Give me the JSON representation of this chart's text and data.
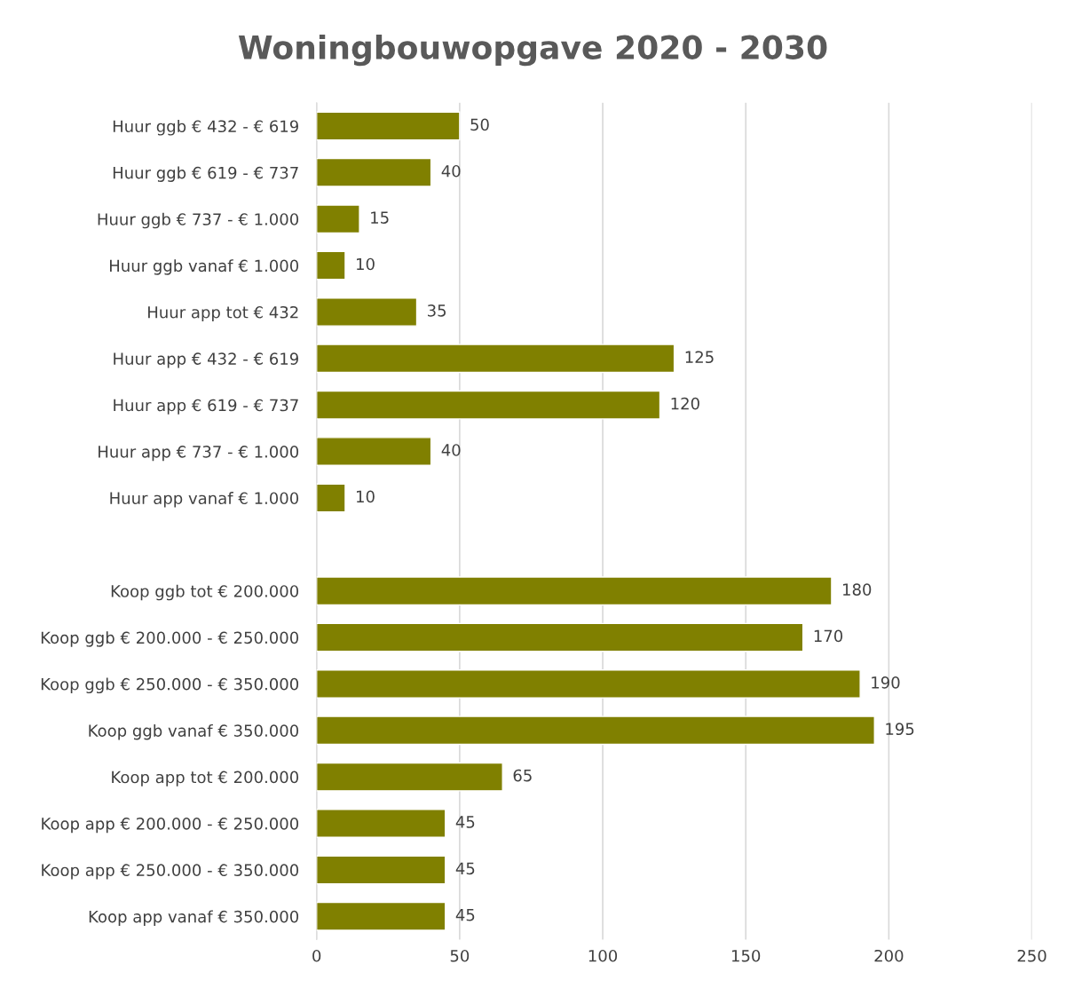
{
  "chart_data": {
    "type": "bar",
    "orientation": "horizontal",
    "title": "Woningbouwopgave 2020 - 2030",
    "categories": [
      "Huur ggb € 432 - € 619",
      "Huur ggb € 619 - € 737",
      "Huur ggb € 737 - € 1.000",
      "Huur ggb vanaf € 1.000",
      "Huur app tot € 432",
      "Huur app € 432 - € 619",
      "Huur app € 619 - € 737",
      "Huur app € 737 - € 1.000",
      "Huur app vanaf € 1.000",
      null,
      "Koop ggb tot € 200.000",
      "Koop ggb € 200.000 - € 250.000",
      "Koop ggb € 250.000 - € 350.000",
      "Koop ggb vanaf € 350.000",
      "Koop app tot € 200.000",
      "Koop app € 200.000 - € 250.000",
      "Koop app € 250.000 - € 350.000",
      "Koop app vanaf € 350.000"
    ],
    "values": [
      50,
      40,
      15,
      10,
      35,
      125,
      120,
      40,
      10,
      null,
      180,
      170,
      190,
      195,
      65,
      45,
      45,
      45
    ],
    "color": "#808000",
    "xlim": [
      0,
      250
    ],
    "xticks": [
      0,
      50,
      100,
      150,
      200,
      250
    ],
    "grid": "x",
    "data_labels": true
  }
}
